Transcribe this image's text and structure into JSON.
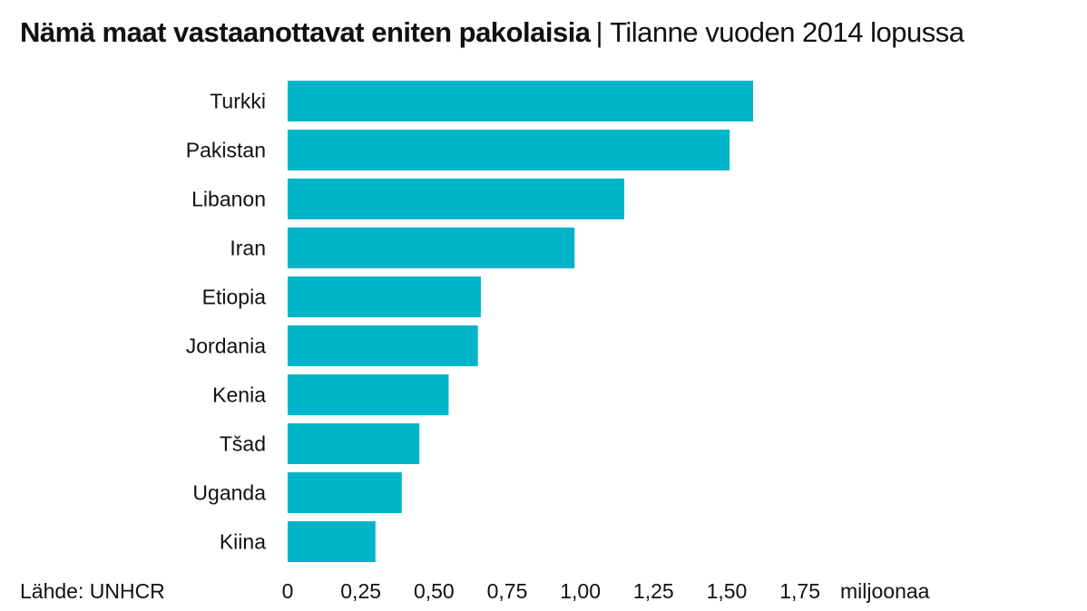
{
  "header": {
    "title": "Nämä maat vastaanottavat eniten pakolaisia",
    "separator": "|",
    "subtitle": "Tilanne vuoden 2014 lopussa"
  },
  "footer": {
    "source": "Lähde: UNHCR"
  },
  "chart_data": {
    "type": "bar",
    "orientation": "horizontal",
    "title": "Nämä maat vastaanottavat eniten pakolaisia",
    "subtitle": "Tilanne vuoden 2014 lopussa",
    "categories": [
      "Turkki",
      "Pakistan",
      "Libanon",
      "Iran",
      "Etiopia",
      "Jordania",
      "Kenia",
      "Tšad",
      "Uganda",
      "Kiina"
    ],
    "values": [
      1.59,
      1.51,
      1.15,
      0.98,
      0.66,
      0.65,
      0.55,
      0.45,
      0.39,
      0.3
    ],
    "xlim": [
      0,
      1.75
    ],
    "xticks": [
      0,
      0.25,
      0.5,
      0.75,
      1.0,
      1.25,
      1.5,
      1.75
    ],
    "xtick_labels": [
      "0",
      "0,25",
      "0,50",
      "0,75",
      "1,00",
      "1,25",
      "1,50",
      "1,75"
    ],
    "unit_label": "miljoonaa",
    "bar_color": "#00b5c9",
    "grid": false,
    "legend": "none",
    "source": "Lähde: UNHCR"
  }
}
